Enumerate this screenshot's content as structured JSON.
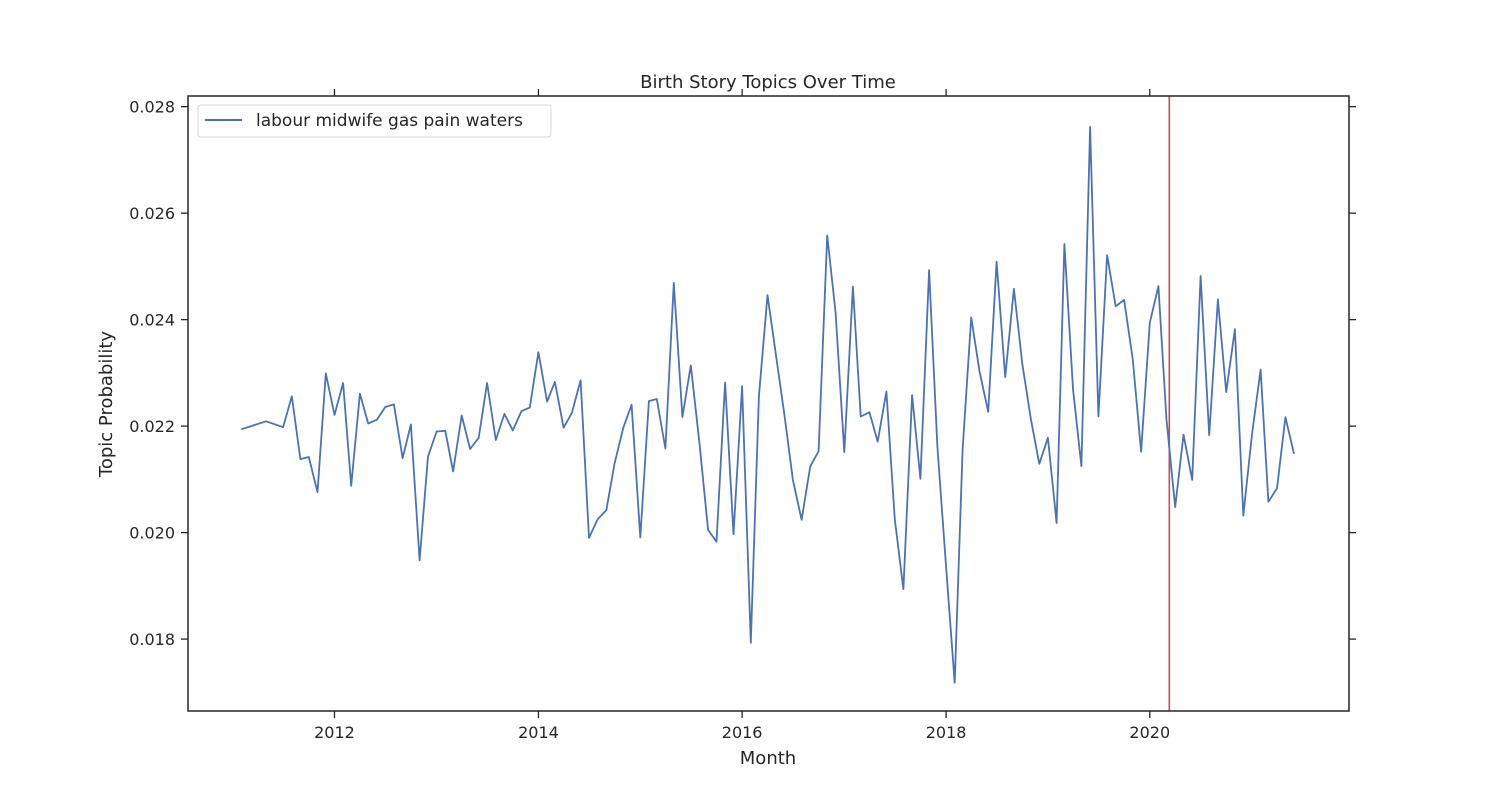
{
  "chart_data": {
    "type": "line",
    "title": "Birth Story Topics Over Time",
    "xlabel": "Month",
    "ylabel": "Topic Probability",
    "x_axis_type": "date",
    "xlim": [
      "2010-07-25",
      "2021-12-15"
    ],
    "ylim": [
      0.01665,
      0.0282
    ],
    "x_ticks": [
      {
        "label": "2012",
        "date": "2012-01-01"
      },
      {
        "label": "2014",
        "date": "2014-01-01"
      },
      {
        "label": "2016",
        "date": "2016-01-01"
      },
      {
        "label": "2018",
        "date": "2018-01-01"
      },
      {
        "label": "2020",
        "date": "2020-01-01"
      }
    ],
    "y_ticks": [
      {
        "label": "0.018",
        "value": 0.018
      },
      {
        "label": "0.020",
        "value": 0.02
      },
      {
        "label": "0.022",
        "value": 0.022
      },
      {
        "label": "0.024",
        "value": 0.024
      },
      {
        "label": "0.026",
        "value": 0.026
      },
      {
        "label": "0.028",
        "value": 0.028
      }
    ],
    "grid": false,
    "mirror_ticks": true,
    "legend_position": "top-left",
    "reference_line": {
      "date": "2020-03-11",
      "color": "#c44e52"
    },
    "series": [
      {
        "name": "labour midwife gas pain waters",
        "color": "#4c72b0",
        "x": [
          "2011-02-01",
          "2011-05-01",
          "2011-07-01",
          "2011-08-01",
          "2011-09-01",
          "2011-10-01",
          "2011-11-01",
          "2011-12-01",
          "2012-01-01",
          "2012-02-01",
          "2012-03-01",
          "2012-04-01",
          "2012-05-01",
          "2012-06-01",
          "2012-07-01",
          "2012-08-01",
          "2012-09-01",
          "2012-10-01",
          "2012-11-01",
          "2012-12-01",
          "2013-01-01",
          "2013-02-01",
          "2013-03-01",
          "2013-04-01",
          "2013-05-01",
          "2013-06-01",
          "2013-07-01",
          "2013-08-01",
          "2013-09-01",
          "2013-10-01",
          "2013-11-01",
          "2013-12-01",
          "2014-01-01",
          "2014-02-01",
          "2014-03-01",
          "2014-04-01",
          "2014-05-01",
          "2014-06-01",
          "2014-07-01",
          "2014-08-01",
          "2014-09-01",
          "2014-10-01",
          "2014-11-01",
          "2014-12-01",
          "2015-01-01",
          "2015-02-01",
          "2015-03-01",
          "2015-04-01",
          "2015-05-01",
          "2015-06-01",
          "2015-07-01",
          "2015-08-01",
          "2015-09-01",
          "2015-10-01",
          "2015-11-01",
          "2015-12-01",
          "2016-01-01",
          "2016-02-01",
          "2016-03-01",
          "2016-04-01",
          "2016-06-01",
          "2016-07-01",
          "2016-08-01",
          "2016-09-01",
          "2016-10-01",
          "2016-11-01",
          "2016-12-01",
          "2017-01-01",
          "2017-02-01",
          "2017-03-01",
          "2017-04-01",
          "2017-05-01",
          "2017-06-01",
          "2017-07-01",
          "2017-08-01",
          "2017-09-01",
          "2017-10-01",
          "2017-11-01",
          "2017-12-01",
          "2018-01-01",
          "2018-02-01",
          "2018-03-01",
          "2018-04-01",
          "2018-05-01",
          "2018-06-01",
          "2018-07-01",
          "2018-08-01",
          "2018-09-01",
          "2018-10-01",
          "2018-11-01",
          "2018-12-01",
          "2019-01-01",
          "2019-02-01",
          "2019-03-01",
          "2019-04-01",
          "2019-05-01",
          "2019-06-01",
          "2019-07-01",
          "2019-08-01",
          "2019-09-01",
          "2019-10-01",
          "2019-11-01",
          "2019-12-01",
          "2020-01-01",
          "2020-02-01",
          "2020-03-01",
          "2020-04-01",
          "2020-05-01",
          "2020-06-01",
          "2020-07-01",
          "2020-08-01",
          "2020-09-01",
          "2020-10-01",
          "2020-11-01",
          "2020-12-01",
          "2021-01-01",
          "2021-02-01",
          "2021-03-01",
          "2021-04-01",
          "2021-05-01",
          "2021-06-01"
        ],
        "values": [
          0.02194,
          0.02209,
          0.02198,
          0.02256,
          0.02138,
          0.02142,
          0.02076,
          0.02299,
          0.02221,
          0.02281,
          0.02088,
          0.02261,
          0.02205,
          0.02212,
          0.02236,
          0.02241,
          0.0214,
          0.02203,
          0.01948,
          0.02143,
          0.0219,
          0.02191,
          0.02115,
          0.0222,
          0.02157,
          0.02178,
          0.02281,
          0.02174,
          0.02223,
          0.02192,
          0.02228,
          0.02235,
          0.02339,
          0.02246,
          0.02283,
          0.02197,
          0.02225,
          0.02286,
          0.0199,
          0.02025,
          0.02042,
          0.0213,
          0.02197,
          0.0224,
          0.01991,
          0.02247,
          0.02251,
          0.02158,
          0.02469,
          0.02217,
          0.02314,
          0.02169,
          0.02005,
          0.01983,
          0.02282,
          0.01997,
          0.02275,
          0.01793,
          0.02256,
          0.02446,
          0.0222,
          0.02099,
          0.02024,
          0.02124,
          0.02153,
          0.02558,
          0.02413,
          0.02151,
          0.02462,
          0.02218,
          0.02226,
          0.02171,
          0.02265,
          0.02025,
          0.01894,
          0.02258,
          0.02101,
          0.02493,
          0.02161,
          0.01935,
          0.01718,
          0.02156,
          0.02404,
          0.02302,
          0.02227,
          0.02509,
          0.02292,
          0.02458,
          0.02317,
          0.02213,
          0.02129,
          0.02178,
          0.02018,
          0.02542,
          0.0227,
          0.02125,
          0.02762,
          0.02218,
          0.02521,
          0.02425,
          0.02437,
          0.02325,
          0.02152,
          0.02394,
          0.02463,
          0.02212,
          0.02048,
          0.02184,
          0.02099,
          0.02482,
          0.02183,
          0.02438,
          0.02264,
          0.02382,
          0.02032,
          0.02183,
          0.02306,
          0.02058,
          0.02083,
          0.02217,
          0.02148
        ]
      }
    ]
  }
}
